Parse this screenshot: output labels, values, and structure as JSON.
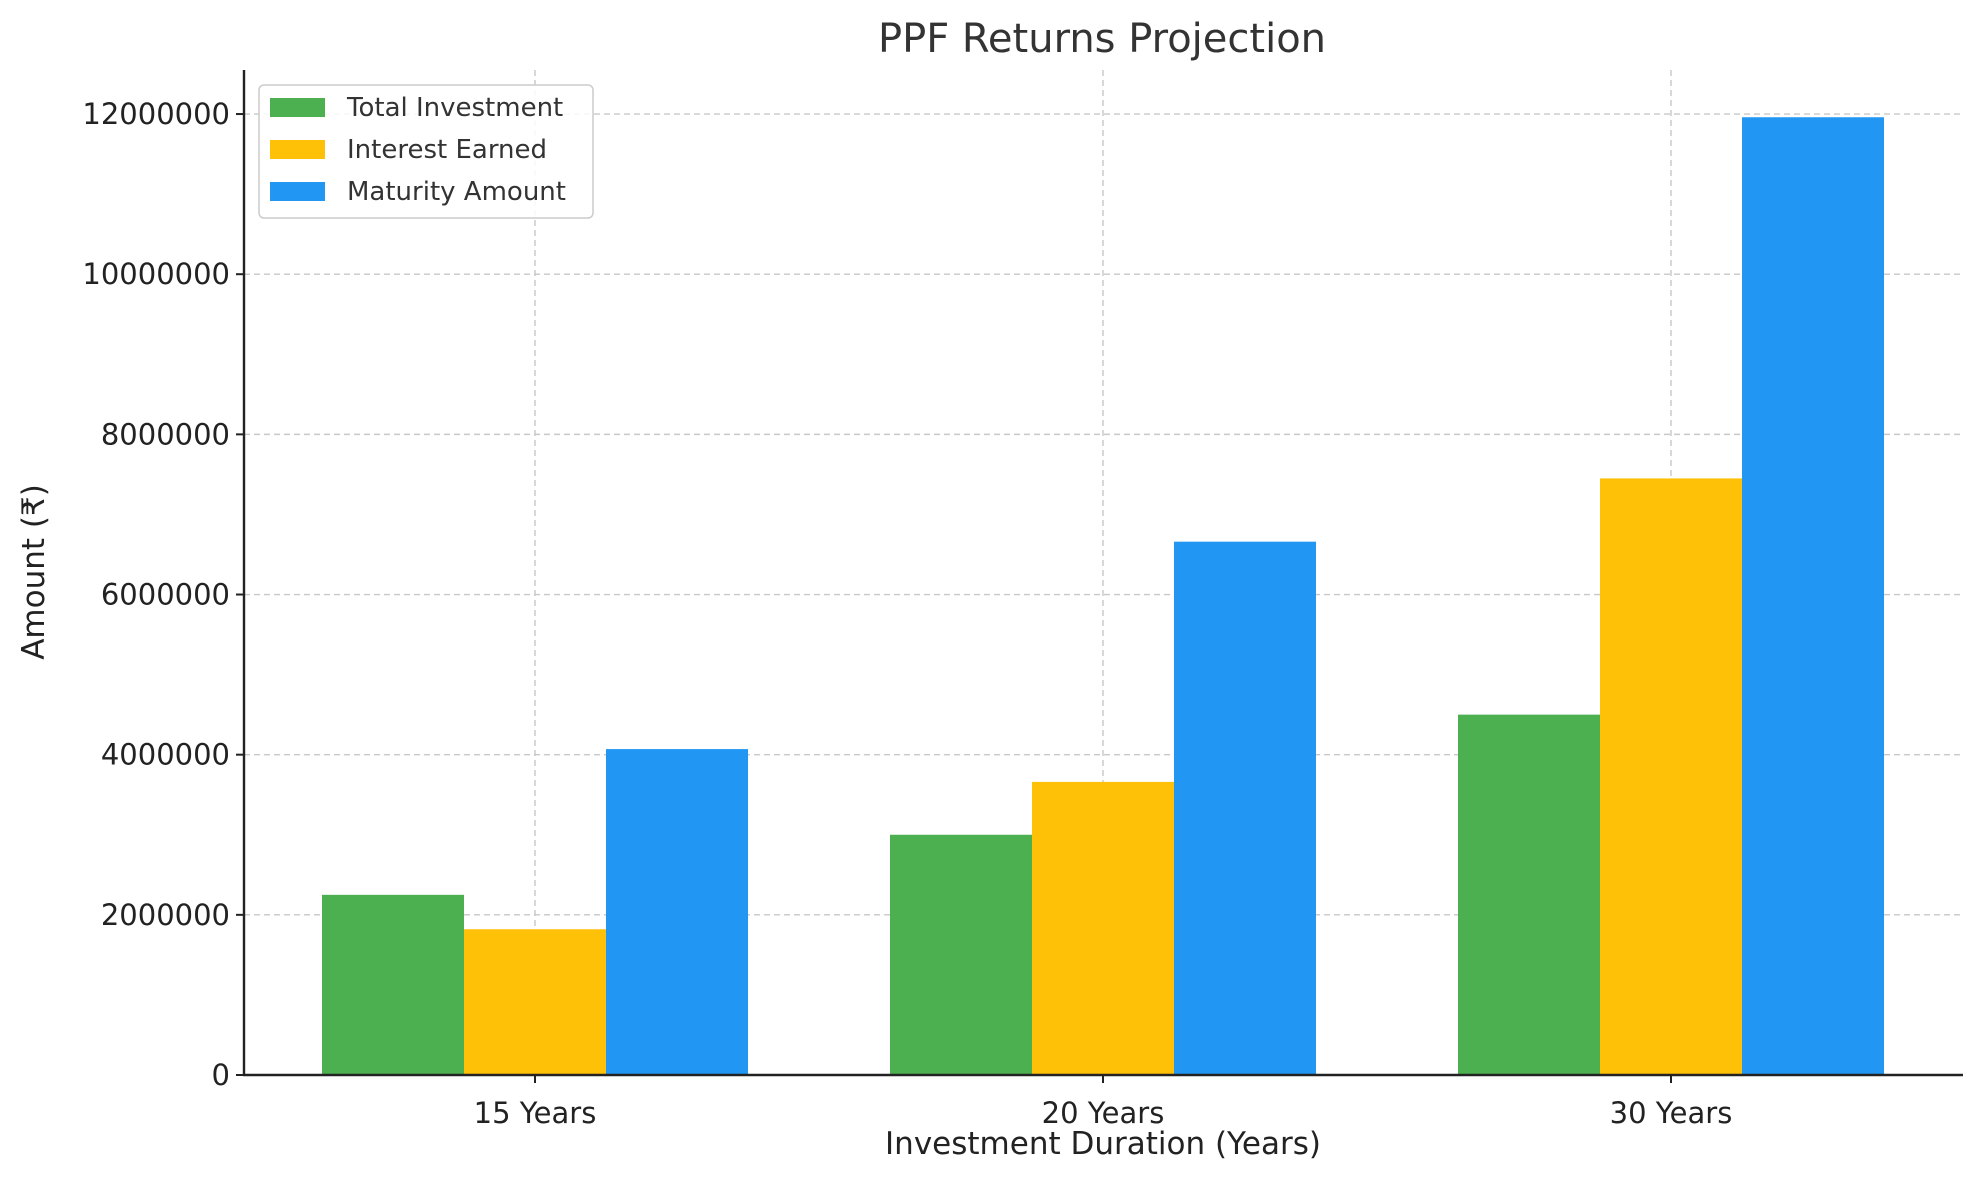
{
  "chart_data": {
    "type": "bar",
    "title": "PPF Returns Projection",
    "xlabel": "Investment Duration (Years)",
    "ylabel": "Amount (₹)",
    "categories": [
      "15 Years",
      "20 Years",
      "30 Years"
    ],
    "series": [
      {
        "name": "Total Investment",
        "color": "#4caf50",
        "values": [
          2250000,
          3000000,
          4500000
        ]
      },
      {
        "name": "Interest Earned",
        "color": "#ffc107",
        "values": [
          1820000,
          3660000,
          7450000
        ]
      },
      {
        "name": "Maturity Amount",
        "color": "#2196f3",
        "values": [
          4070000,
          6660000,
          11960000
        ]
      }
    ],
    "ylim": [
      0,
      12550000
    ],
    "yticks": [
      0,
      2000000,
      4000000,
      6000000,
      8000000,
      10000000,
      12000000
    ],
    "ytick_labels": [
      "0",
      "2000000",
      "4000000",
      "6000000",
      "8000000",
      "10000000",
      "12000000"
    ],
    "grid": true,
    "legend_position": "top-left"
  }
}
